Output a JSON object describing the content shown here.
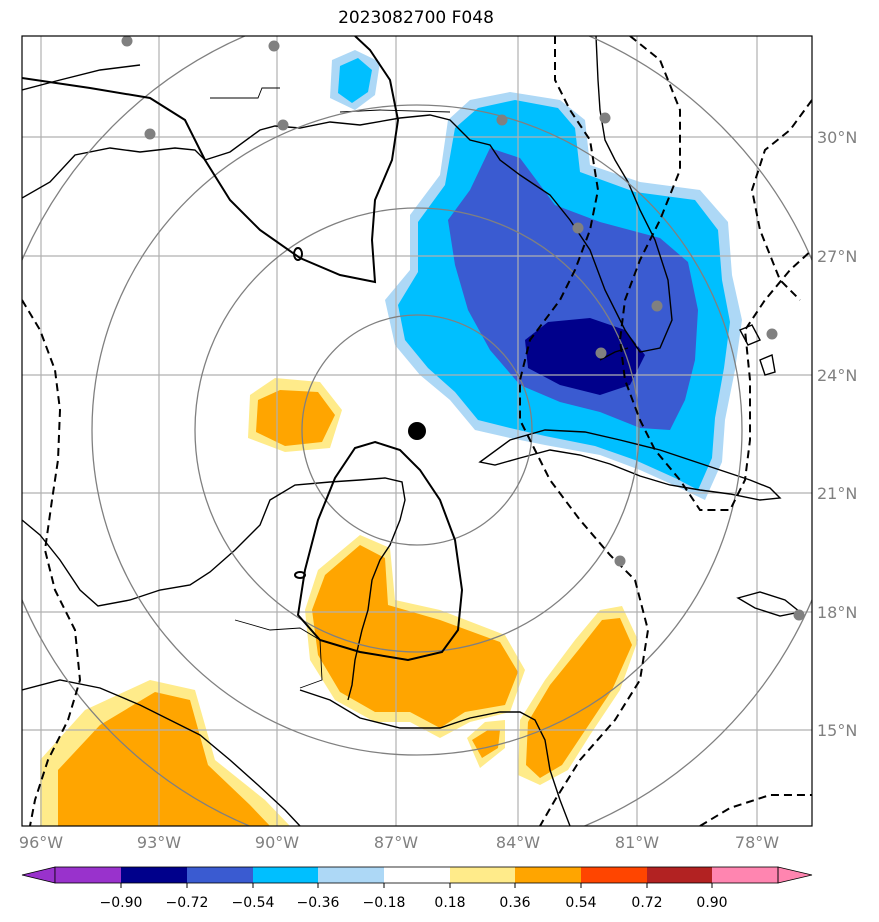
{
  "title": "2023082700 F048",
  "map": {
    "lon_labels": [
      "96°W",
      "93°W",
      "90°W",
      "87°W",
      "84°W",
      "81°W",
      "78°W"
    ],
    "lat_labels": [
      "30°N",
      "27°N",
      "24°N",
      "21°N",
      "18°N",
      "15°N"
    ],
    "label_color": "#808080"
  },
  "colorbar": {
    "ticks": [
      "−0.90",
      "−0.72",
      "−0.54",
      "−0.36",
      "−0.18",
      "0.18",
      "0.36",
      "0.54",
      "0.72",
      "0.90"
    ],
    "colors": [
      "#9932cc",
      "#00008b",
      "#3a5bd1",
      "#00bfff",
      "#add8f6",
      "#ffffff",
      "#ffeb8a",
      "#ffa500",
      "#ff4500",
      "#b22222",
      "#ff85b0"
    ]
  },
  "shading_colors": {
    "light_blue": "#add8f6",
    "blue": "#00bfff",
    "royal_blue": "#3a5bd1",
    "navy": "#00008b",
    "light_yellow": "#ffeb8a",
    "orange": "#ffa500"
  },
  "storm_center": {
    "lon": "86.6°W",
    "lat": "22.6°N"
  }
}
